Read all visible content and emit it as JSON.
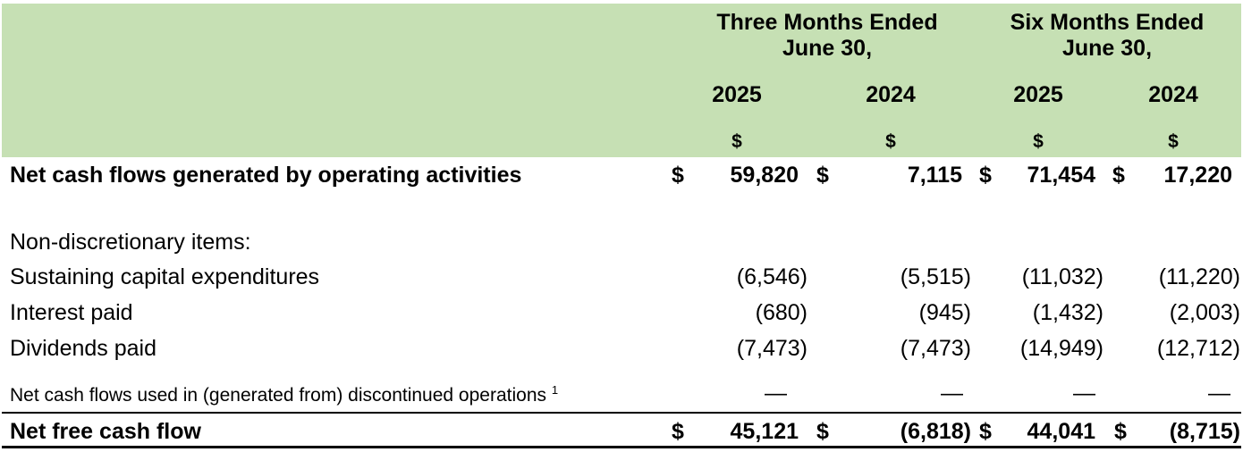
{
  "header": {
    "three_months_line1": "Three Months Ended",
    "three_months_line2": "June 30,",
    "six_months_line1": "Six Months Ended",
    "six_months_line2": "June 30,",
    "years": [
      "2025",
      "2024",
      "2025",
      "2024"
    ],
    "currency": "$"
  },
  "rows": {
    "operating": {
      "label": "Net cash flows generated by operating activities",
      "currency": "$",
      "values": [
        "59,820",
        "7,115",
        "71,454",
        "17,220"
      ]
    },
    "non_disc": {
      "label": "Non-discretionary items:"
    },
    "sustaining": {
      "label": "Sustaining capital expenditures",
      "values": [
        "(6,546)",
        "(5,515)",
        "(11,032)",
        "(11,220)"
      ]
    },
    "interest": {
      "label": "Interest paid",
      "values": [
        "(680)",
        "(945)",
        "(1,432)",
        "(2,003)"
      ]
    },
    "dividends": {
      "label": "Dividends paid",
      "values": [
        "(7,473)",
        "(7,473)",
        "(14,949)",
        "(12,712)"
      ]
    },
    "discontinued": {
      "label": "Net cash flows used in (generated from) discontinued operations",
      "footnote": "1",
      "values": [
        "—",
        "—",
        "—",
        "—"
      ]
    },
    "net_free": {
      "label": "Net free cash flow",
      "currency": "$",
      "values": [
        "45,121",
        "(6,818)",
        "44,041",
        "(8,715)"
      ]
    }
  }
}
